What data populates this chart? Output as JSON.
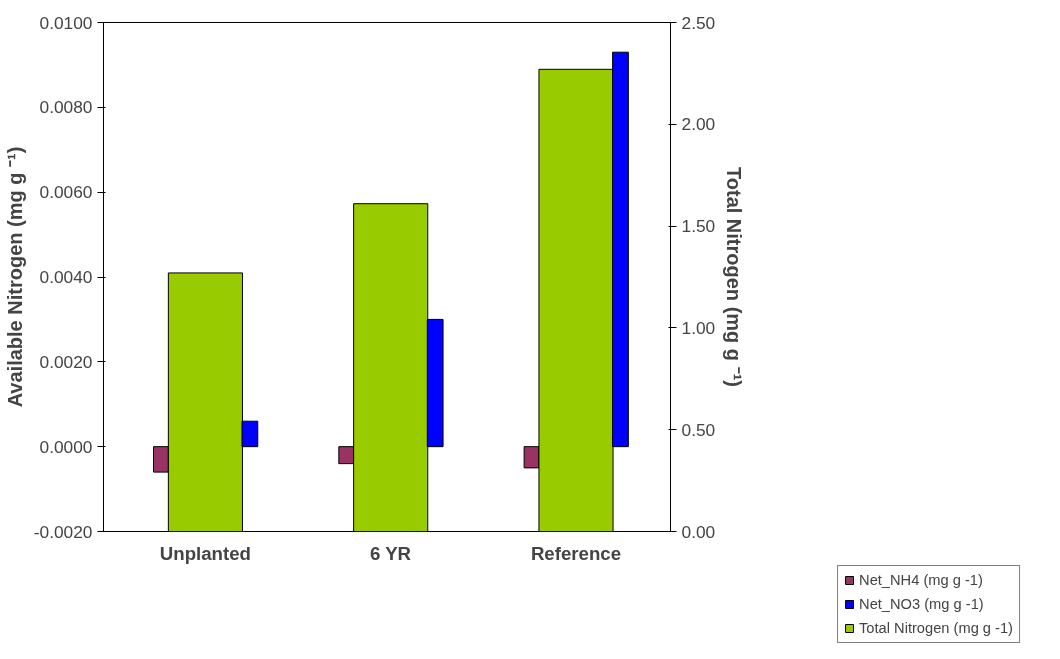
{
  "chart_data": {
    "type": "bar",
    "ylabel": "Available Nitrogen (mg g ⁻¹)",
    "y2label": "Total Nitrogen (mg g ⁻¹)",
    "categories": [
      "Unplanted",
      "6 YR",
      "Reference"
    ],
    "series": [
      {
        "name": "Net_NH4 (mg g -1)",
        "color": "#993366",
        "values": [
          -0.0006,
          -0.0004,
          -0.0005
        ]
      },
      {
        "name": "Total Nitrogen (mg g -1)",
        "color": "#99cc00",
        "values": [
          1.27,
          1.61,
          2.27
        ],
        "axis": "y2"
      },
      {
        "name": "Net_NO3 (mg g -1)",
        "color": "#0000ff",
        "values": [
          0.0006,
          0.003,
          0.0093
        ]
      }
    ],
    "ylim": [
      -0.002,
      0.01
    ],
    "yticks": [
      {
        "value": -0.002,
        "label": "-0.0020"
      },
      {
        "value": 0,
        "label": "0.0000"
      },
      {
        "value": 0.002,
        "label": "0.0020"
      },
      {
        "value": 0.004,
        "label": "0.0040"
      },
      {
        "value": 0.006,
        "label": "0.0060"
      },
      {
        "value": 0.008,
        "label": "0.0080"
      },
      {
        "value": 0.01,
        "label": "0.0100"
      }
    ],
    "y2lim": [
      0,
      2.5
    ],
    "y2ticks": [
      {
        "value": 0,
        "label": "0.00"
      },
      {
        "value": 0.5,
        "label": "0.50"
      },
      {
        "value": 1,
        "label": "1.00"
      },
      {
        "value": 1.5,
        "label": "1.50"
      },
      {
        "value": 2,
        "label": "2.00"
      },
      {
        "value": 2.5,
        "label": "2.50"
      }
    ],
    "grid": false,
    "legend": "bottom right"
  }
}
